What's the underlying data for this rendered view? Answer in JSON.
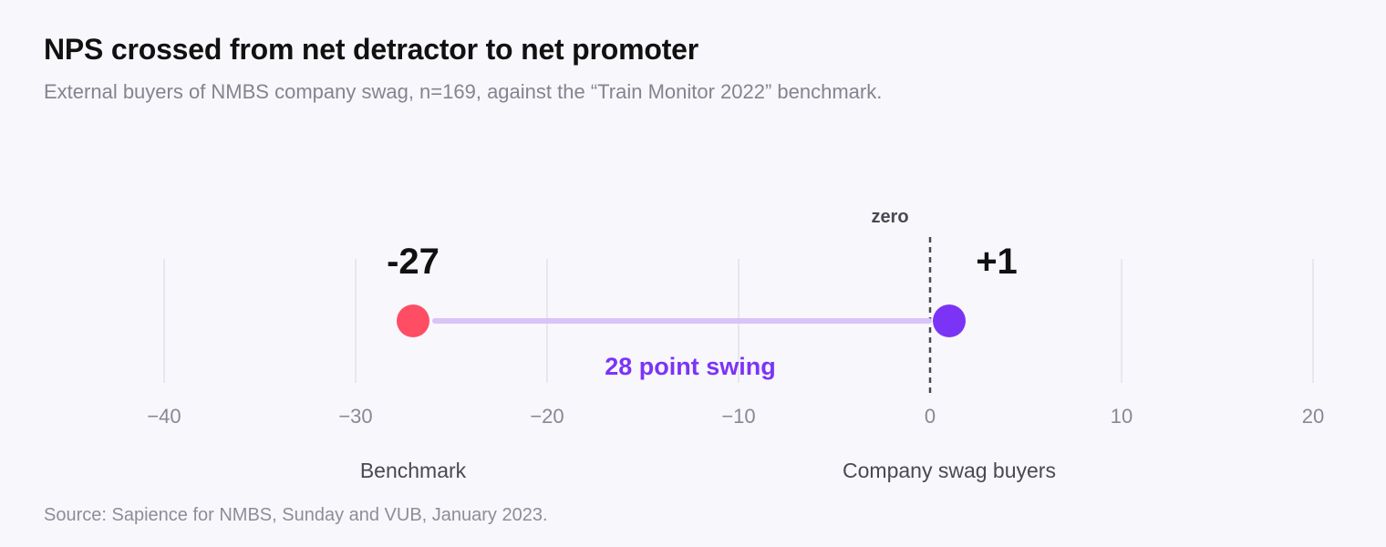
{
  "header": {
    "title": "NPS crossed from net detractor to net promoter",
    "subtitle": "External buyers of NMBS company swag, n=169, against the “Train Monitor 2022” benchmark."
  },
  "footer": {
    "source": "Source: Sapience for NMBS, Sunday and VUB, January 2023."
  },
  "colors": {
    "benchmark": "#ff4d64",
    "company": "#7b34f5",
    "connector": "#d8c4f7",
    "swing_text": "#7b34f5",
    "gridline": "#e2e0ea",
    "zero_line": "#4a4852"
  },
  "chart_data": {
    "type": "dumbbell",
    "title": "NPS crossed from net detractor to net promoter",
    "xlim": [
      -40,
      20
    ],
    "ticks": [
      -40,
      -30,
      -20,
      -10,
      0,
      10,
      20
    ],
    "tick_labels": [
      "−40",
      "−30",
      "−20",
      "−10",
      "0",
      "10",
      "20"
    ],
    "reference_line": {
      "value": 0,
      "label": "zero"
    },
    "points": [
      {
        "name": "Benchmark",
        "value": -27,
        "label": "-27"
      },
      {
        "name": "Company swag buyers",
        "value": 1,
        "label": "+1"
      }
    ],
    "annotation": "28 point swing",
    "grid": true
  }
}
